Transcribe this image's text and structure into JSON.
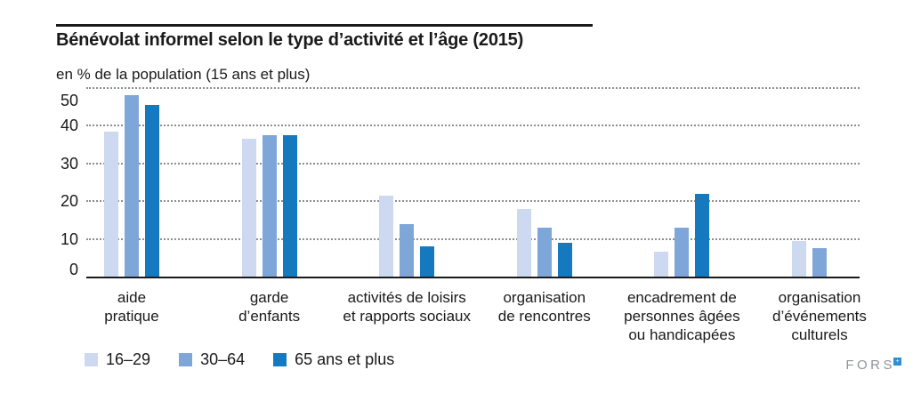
{
  "title": "Bénévolat informel selon le type d’activité et l’âge (2015)",
  "subtitle": "en % de la population (15 ans et plus)",
  "logo": {
    "text": "FORS",
    "mark": "plus-square-icon",
    "mark_color": "#2e8fd0"
  },
  "colors": {
    "age_16_29": "#ccd9f0",
    "age_30_64": "#7fa6d8",
    "age_65_plus": "#1579bf",
    "grid": "#8e8e8e",
    "axis": "#1a1a1a"
  },
  "chart_data": {
    "type": "bar",
    "title": "Bénévolat informel selon le type d’activité et l’âge (2015)",
    "subtitle": "en % de la population (15 ans et plus)",
    "categories": [
      [
        "aide",
        "pratique"
      ],
      [
        "garde",
        "d’enfants"
      ],
      [
        "activités de loisirs",
        "et rapports sociaux"
      ],
      [
        "organisation",
        "de rencontres"
      ],
      [
        "encadrement de",
        "personnes âgées",
        "ou handicapées"
      ],
      [
        "organisation",
        "d’événements",
        "culturels"
      ]
    ],
    "series": [
      {
        "name": "16–29",
        "color": "#ccd9f0",
        "values": [
          38.5,
          36.5,
          21.5,
          18,
          6.5,
          9.5
        ]
      },
      {
        "name": "30–64",
        "color": "#7fa6d8",
        "values": [
          48,
          37.5,
          14,
          13,
          13,
          7.5
        ]
      },
      {
        "name": "65 ans et plus",
        "color": "#1579bf",
        "values": [
          45.5,
          37.5,
          8,
          9,
          22,
          null
        ]
      }
    ],
    "xlabel": "",
    "ylabel": "",
    "ylim": [
      0,
      50
    ],
    "yticks": [
      0,
      10,
      20,
      30,
      40,
      50
    ],
    "grid": "horizontal-dotted",
    "legend_position": "bottom-left"
  }
}
